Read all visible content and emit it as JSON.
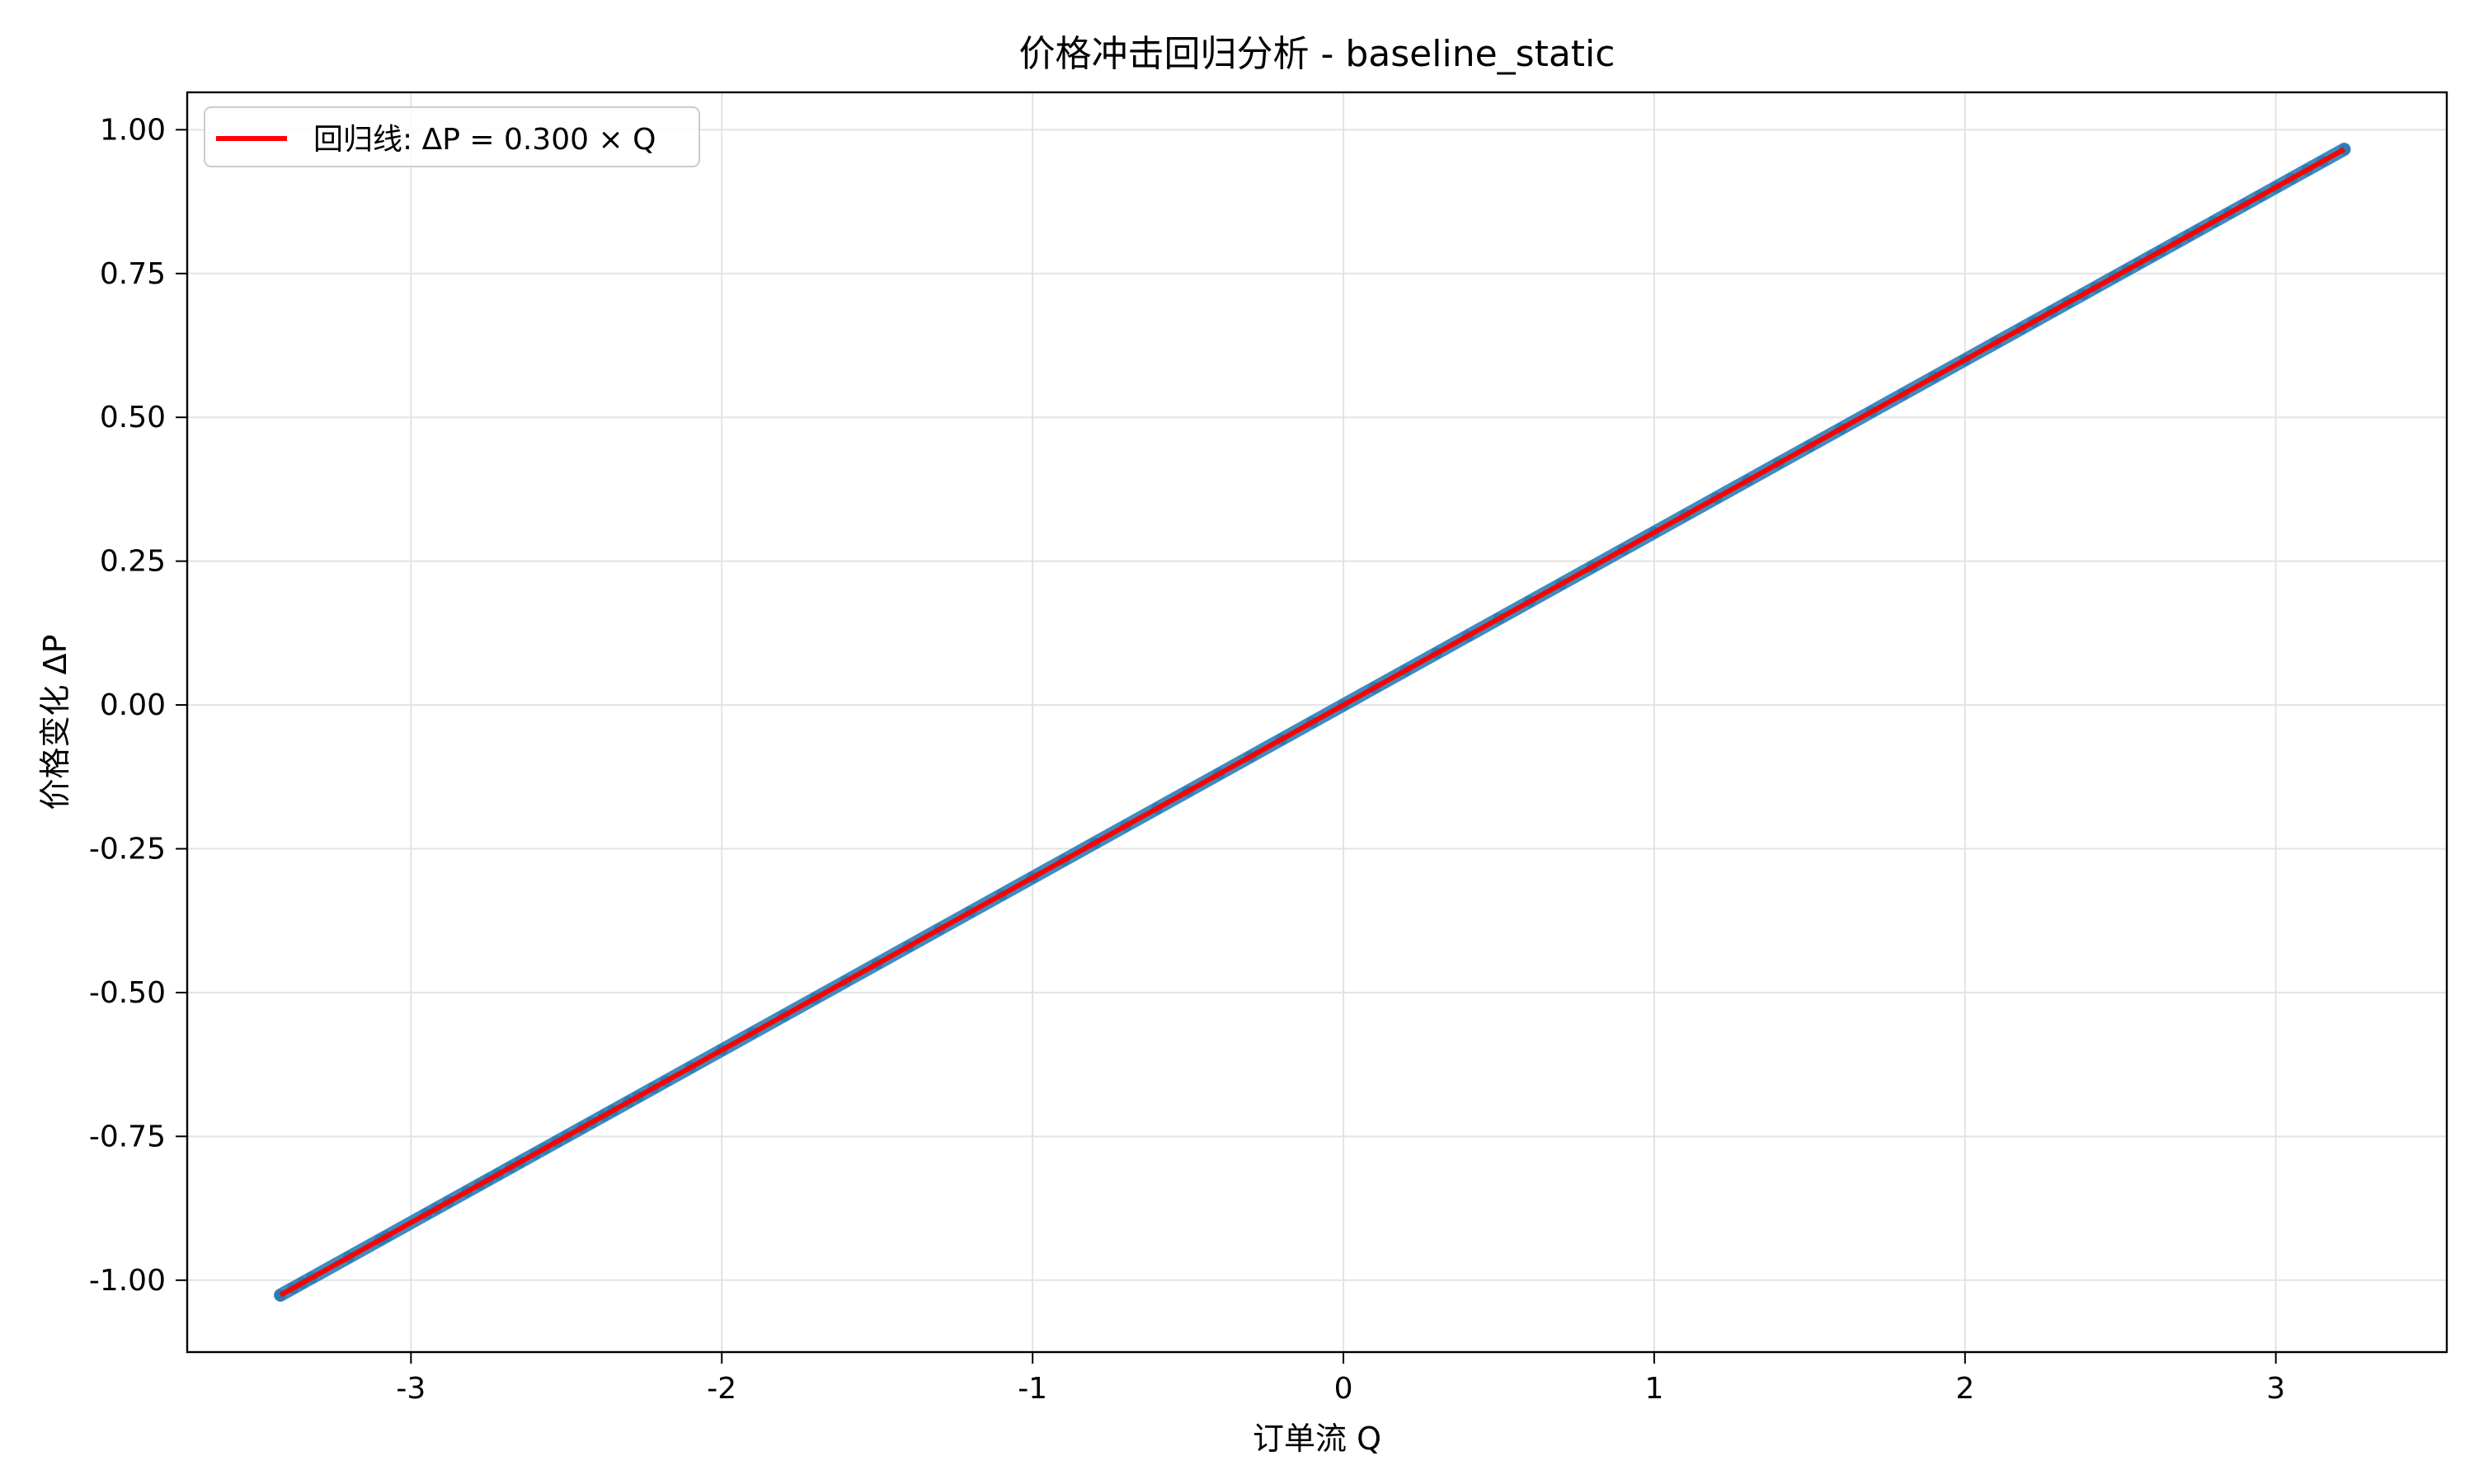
{
  "chart_data": {
    "type": "scatter",
    "title": "价格冲击回归分析 - baseline_static",
    "xlabel": "订单流 Q",
    "ylabel": "价格变化 ΔP",
    "xlim": [
      -3.72,
      3.55
    ],
    "ylim": [
      -1.125,
      1.065
    ],
    "xticks": [
      -3,
      -2,
      -1,
      0,
      1,
      2,
      3
    ],
    "xtick_labels": [
      "-3",
      "-2",
      "-1",
      "0",
      "1",
      "2",
      "3"
    ],
    "yticks": [
      -1.0,
      -0.75,
      -0.5,
      -0.25,
      0.0,
      0.25,
      0.5,
      0.75,
      1.0
    ],
    "ytick_labels": [
      "-1.00",
      "-0.75",
      "-0.50",
      "-0.25",
      "0.00",
      "0.25",
      "0.50",
      "0.75",
      "1.00"
    ],
    "grid": true,
    "legend_position": "top-left",
    "series": [
      {
        "type": "scatter",
        "color": "#1f77b4",
        "x": [
          -3.42,
          -3.38,
          -3.35,
          -3.32,
          -3.2,
          -3.1,
          -3.08,
          -2.95,
          -2.92,
          -2.88,
          -2.82,
          -2.78,
          -2.75,
          -2.72,
          -2.68,
          -2.65,
          -2.6,
          -2.57,
          -2.53,
          -2.5,
          -2.45,
          -2.42,
          -2.38,
          -2.35,
          -2.3,
          -2.27,
          -2.22,
          -2.18,
          -2.1,
          -2.0,
          -1.9,
          -1.8,
          -1.7,
          -1.6,
          -1.5,
          -1.4,
          -1.3,
          -1.2,
          -1.1,
          -1.0,
          -0.9,
          -0.8,
          -0.7,
          -0.6,
          -0.5,
          -0.4,
          -0.3,
          -0.2,
          -0.1,
          0.0,
          0.1,
          0.2,
          0.3,
          0.4,
          0.5,
          0.6,
          0.7,
          0.8,
          0.9,
          1.0,
          1.1,
          1.2,
          1.3,
          1.4,
          1.5,
          1.6,
          1.7,
          1.8,
          1.9,
          2.0,
          2.1,
          2.18,
          2.22,
          2.28,
          2.33,
          2.38,
          2.42,
          2.48,
          2.52,
          2.56,
          2.6,
          2.63,
          2.68,
          2.72,
          2.75,
          2.8,
          2.85,
          2.9,
          2.95,
          3.0,
          3.05,
          3.1,
          3.15,
          3.22
        ],
        "y": [
          -1.026,
          -1.014,
          -1.005,
          -0.996,
          -0.96,
          -0.93,
          -0.924,
          -0.885,
          -0.876,
          -0.864,
          -0.846,
          -0.834,
          -0.825,
          -0.816,
          -0.804,
          -0.795,
          -0.78,
          -0.771,
          -0.759,
          -0.75,
          -0.735,
          -0.726,
          -0.714,
          -0.705,
          -0.69,
          -0.681,
          -0.666,
          -0.654,
          -0.63,
          -0.6,
          -0.57,
          -0.54,
          -0.51,
          -0.48,
          -0.45,
          -0.42,
          -0.39,
          -0.36,
          -0.33,
          -0.3,
          -0.27,
          -0.24,
          -0.21,
          -0.18,
          -0.15,
          -0.12,
          -0.09,
          -0.06,
          -0.03,
          0.0,
          0.03,
          0.06,
          0.09,
          0.12,
          0.15,
          0.18,
          0.21,
          0.24,
          0.27,
          0.3,
          0.33,
          0.36,
          0.39,
          0.42,
          0.45,
          0.48,
          0.51,
          0.54,
          0.57,
          0.6,
          0.63,
          0.654,
          0.666,
          0.684,
          0.699,
          0.714,
          0.726,
          0.744,
          0.756,
          0.768,
          0.78,
          0.789,
          0.804,
          0.816,
          0.825,
          0.84,
          0.855,
          0.87,
          0.885,
          0.9,
          0.915,
          0.93,
          0.945,
          0.966
        ]
      },
      {
        "type": "line",
        "name": "回归线: ΔP = 0.300 × Q",
        "color": "#ff0000",
        "x": [
          -3.42,
          3.22
        ],
        "y": [
          -1.026,
          0.966
        ]
      }
    ]
  }
}
